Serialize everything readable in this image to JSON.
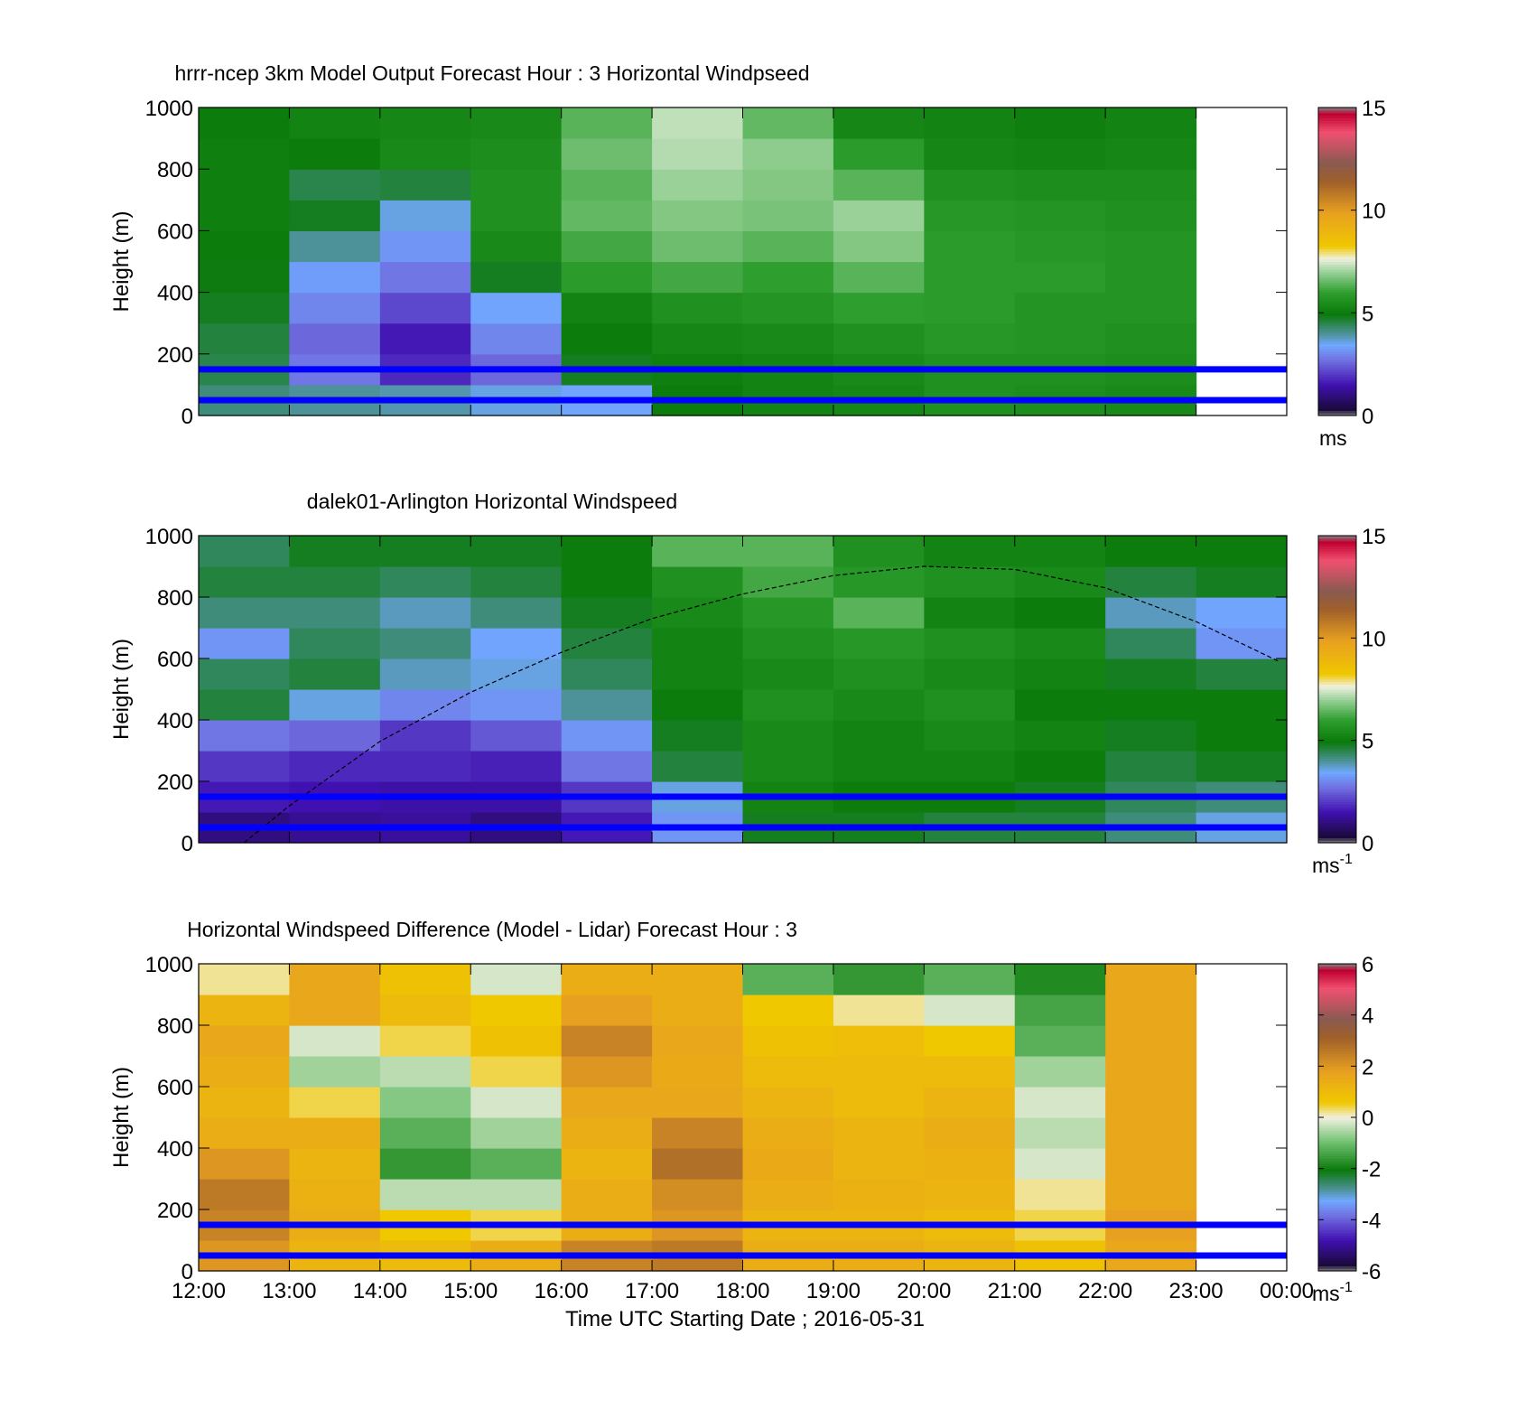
{
  "xlabel": "Time UTC  Starting Date ; 2016-05-31",
  "x_ticks": [
    "12:00",
    "13:00",
    "14:00",
    "15:00",
    "16:00",
    "17:00",
    "18:00",
    "19:00",
    "20:00",
    "21:00",
    "22:00",
    "23:00",
    "00:00"
  ],
  "reference_heights_m": [
    50,
    150
  ],
  "reference_line_color": "#0000ff",
  "chart_data": [
    {
      "type": "heatmap",
      "title": "hrrr-ncep 3km Model Output   Forecast Hour : 3 Horizontal Windpseed",
      "ylabel": "Height (m)",
      "xlim": [
        "12:00",
        "00:00"
      ],
      "ylim": [
        0,
        1000
      ],
      "y_ticks": [
        "0",
        "200",
        "400",
        "600",
        "800",
        "1000"
      ],
      "y_tick_values": [
        0,
        200,
        400,
        600,
        800,
        1000
      ],
      "colorbar": {
        "label": "ms",
        "label_sup": "",
        "range": [
          0,
          15
        ],
        "ticks": [
          "0",
          "5",
          "10",
          "15"
        ],
        "tick_values": [
          0,
          5,
          10,
          15
        ],
        "colormap": "speed"
      },
      "x": [
        "12:00",
        "13:00",
        "14:00",
        "15:00",
        "16:00",
        "17:00",
        "18:00",
        "19:00",
        "20:00",
        "21:00",
        "22:00"
      ],
      "y_levels_m": [
        0,
        100,
        200,
        300,
        400,
        500,
        600,
        700,
        800,
        900
      ],
      "values": [
        [
          4.2,
          4.5,
          4.6,
          4.8,
          4.9,
          5.0,
          5.1,
          5.1,
          5.1,
          5.0
        ],
        [
          4.0,
          2.8,
          2.6,
          3.0,
          3.3,
          4.0,
          4.8,
          4.5,
          5.0,
          5.2
        ],
        [
          3.9,
          1.8,
          1.6,
          2.2,
          2.8,
          3.2,
          3.6,
          4.6,
          5.4,
          5.3
        ],
        [
          3.6,
          2.6,
          3.0,
          3.4,
          4.8,
          5.4,
          5.6,
          5.6,
          5.5,
          5.4
        ],
        [
          3.4,
          4.8,
          5.0,
          5.2,
          5.9,
          6.2,
          6.5,
          6.4,
          6.6,
          6.4
        ],
        [
          5.0,
          5.1,
          5.3,
          5.6,
          6.2,
          6.6,
          6.8,
          7.0,
          7.2,
          7.3
        ],
        [
          5.2,
          5.2,
          5.4,
          5.7,
          6.0,
          6.4,
          6.7,
          6.8,
          6.9,
          6.5
        ],
        [
          5.3,
          5.4,
          5.6,
          6.0,
          6.4,
          6.8,
          7.0,
          6.4,
          5.9,
          5.3
        ],
        [
          5.6,
          5.6,
          5.8,
          5.9,
          5.9,
          5.9,
          5.8,
          5.6,
          5.3,
          5.2
        ],
        [
          5.5,
          5.6,
          5.7,
          5.7,
          5.9,
          5.8,
          5.7,
          5.5,
          5.2,
          5.1
        ],
        [
          5.4,
          5.5,
          5.6,
          5.7,
          5.7,
          5.7,
          5.6,
          5.5,
          5.3,
          5.2
        ]
      ]
    },
    {
      "type": "heatmap",
      "title": "dalek01-Arlington  Horizontal Windspeed",
      "ylabel": "Height (m)",
      "xlim": [
        "12:00",
        "00:00"
      ],
      "ylim": [
        0,
        1000
      ],
      "y_ticks": [
        "0",
        "200",
        "400",
        "600",
        "800",
        "1000"
      ],
      "y_tick_values": [
        0,
        200,
        400,
        600,
        800,
        1000
      ],
      "colorbar": {
        "label": "ms",
        "label_sup": "-1",
        "range": [
          0,
          15
        ],
        "ticks": [
          "0",
          "5",
          "10",
          "15"
        ],
        "tick_values": [
          0,
          5,
          10,
          15
        ],
        "colormap": "speed"
      },
      "x": [
        "12:00",
        "13:00",
        "14:00",
        "15:00",
        "16:00",
        "17:00",
        "18:00",
        "19:00",
        "20:00",
        "21:00",
        "22:00",
        "23:00"
      ],
      "y_levels_m": [
        0,
        100,
        200,
        300,
        400,
        500,
        600,
        700,
        800,
        900
      ],
      "values": [
        [
          1.0,
          1.6,
          2.0,
          2.8,
          4.6,
          4.4,
          3.2,
          4.2,
          4.6,
          4.4
        ],
        [
          1.2,
          1.5,
          1.8,
          2.6,
          3.6,
          4.6,
          4.4,
          4.2,
          4.6,
          4.8
        ],
        [
          1.3,
          1.4,
          1.8,
          2.0,
          3.0,
          3.8,
          4.2,
          3.8,
          4.4,
          4.8
        ],
        [
          1.0,
          1.4,
          1.7,
          2.4,
          3.2,
          3.6,
          3.4,
          4.2,
          4.6,
          4.8
        ],
        [
          1.6,
          2.0,
          2.8,
          3.2,
          4.0,
          4.4,
          4.6,
          4.8,
          5.0,
          5.0
        ],
        [
          3.2,
          3.6,
          4.6,
          4.8,
          5.0,
          5.2,
          5.2,
          5.4,
          5.6,
          6.4
        ],
        [
          4.8,
          5.2,
          5.4,
          5.4,
          5.6,
          5.4,
          5.6,
          5.8,
          6.2,
          6.4
        ],
        [
          4.8,
          5.0,
          5.2,
          5.2,
          5.4,
          5.6,
          5.8,
          6.4,
          5.8,
          5.6
        ],
        [
          4.6,
          5.0,
          5.2,
          5.4,
          5.6,
          5.4,
          5.6,
          5.2,
          5.6,
          5.2
        ],
        [
          4.6,
          4.8,
          5.0,
          5.2,
          5.0,
          5.2,
          5.4,
          5.0,
          5.4,
          5.2
        ],
        [
          4.2,
          4.4,
          4.6,
          4.8,
          5.0,
          4.8,
          4.4,
          3.8,
          4.6,
          5.0
        ],
        [
          3.6,
          4.2,
          4.8,
          5.0,
          5.0,
          4.6,
          3.2,
          3.4,
          4.8,
          5.0
        ]
      ],
      "boundary_layer_curve": {
        "x": [
          "12:30",
          "13:00",
          "14:00",
          "15:00",
          "16:00",
          "17:00",
          "18:00",
          "19:00",
          "20:00",
          "21:00",
          "22:00",
          "23:00",
          "23:55"
        ],
        "y": [
          0,
          120,
          330,
          490,
          620,
          730,
          810,
          870,
          900,
          890,
          830,
          720,
          590
        ]
      }
    },
    {
      "type": "heatmap",
      "title": "Horizontal Windspeed Difference (Model - Lidar) Forecast Hour : 3",
      "ylabel": "Height (m)",
      "xlim": [
        "12:00",
        "00:00"
      ],
      "ylim": [
        0,
        1000
      ],
      "y_ticks": [
        "0",
        "200",
        "400",
        "600",
        "800",
        "1000"
      ],
      "y_tick_values": [
        0,
        200,
        400,
        600,
        800,
        1000
      ],
      "colorbar": {
        "label": "ms",
        "label_sup": "-1",
        "range": [
          -6,
          6
        ],
        "ticks": [
          "-6",
          "-4",
          "-2",
          "0",
          "2",
          "4",
          "6"
        ],
        "tick_values": [
          -6,
          -4,
          -2,
          0,
          2,
          4,
          6
        ],
        "colormap": "diff"
      },
      "x": [
        "12:00",
        "13:00",
        "14:00",
        "15:00",
        "16:00",
        "17:00",
        "18:00",
        "19:00",
        "20:00",
        "21:00",
        "22:00"
      ],
      "y_levels_m": [
        0,
        100,
        200,
        300,
        400,
        500,
        600,
        700,
        800,
        900
      ],
      "values": [
        [
          2.0,
          2.4,
          2.6,
          2.0,
          1.4,
          1.2,
          1.4,
          1.6,
          1.2,
          0.2
        ],
        [
          1.2,
          1.4,
          1.3,
          1.2,
          1.4,
          0.4,
          -0.6,
          -0.2,
          1.6,
          1.6
        ],
        [
          1.0,
          0.6,
          -0.4,
          -1.6,
          -1.2,
          -0.8,
          -0.4,
          0.4,
          1.0,
          0.8
        ],
        [
          1.4,
          0.4,
          -0.4,
          -1.2,
          -0.6,
          -0.2,
          0.4,
          0.8,
          0.6,
          -0.2
        ],
        [
          2.4,
          1.4,
          1.4,
          1.2,
          1.4,
          1.6,
          2.0,
          2.4,
          1.8,
          1.4
        ],
        [
          2.6,
          2.0,
          2.2,
          2.8,
          2.4,
          1.6,
          1.5,
          1.6,
          1.4,
          1.4
        ],
        [
          1.4,
          1.2,
          1.4,
          1.5,
          1.4,
          1.2,
          1.0,
          0.8,
          0.6,
          -1.2
        ],
        [
          1.4,
          1.2,
          1.3,
          1.2,
          1.2,
          1.0,
          1.0,
          0.9,
          0.2,
          -1.6
        ],
        [
          1.2,
          1.0,
          1.2,
          1.3,
          1.4,
          1.2,
          1.0,
          0.6,
          -0.2,
          -1.2
        ],
        [
          0.8,
          0.4,
          0.2,
          -0.2,
          -0.4,
          -0.2,
          -0.6,
          -1.2,
          -1.4,
          -1.8
        ],
        [
          1.6,
          1.8,
          1.6,
          1.6,
          1.6,
          1.6,
          1.6,
          1.6,
          1.6,
          1.6
        ]
      ]
    }
  ]
}
